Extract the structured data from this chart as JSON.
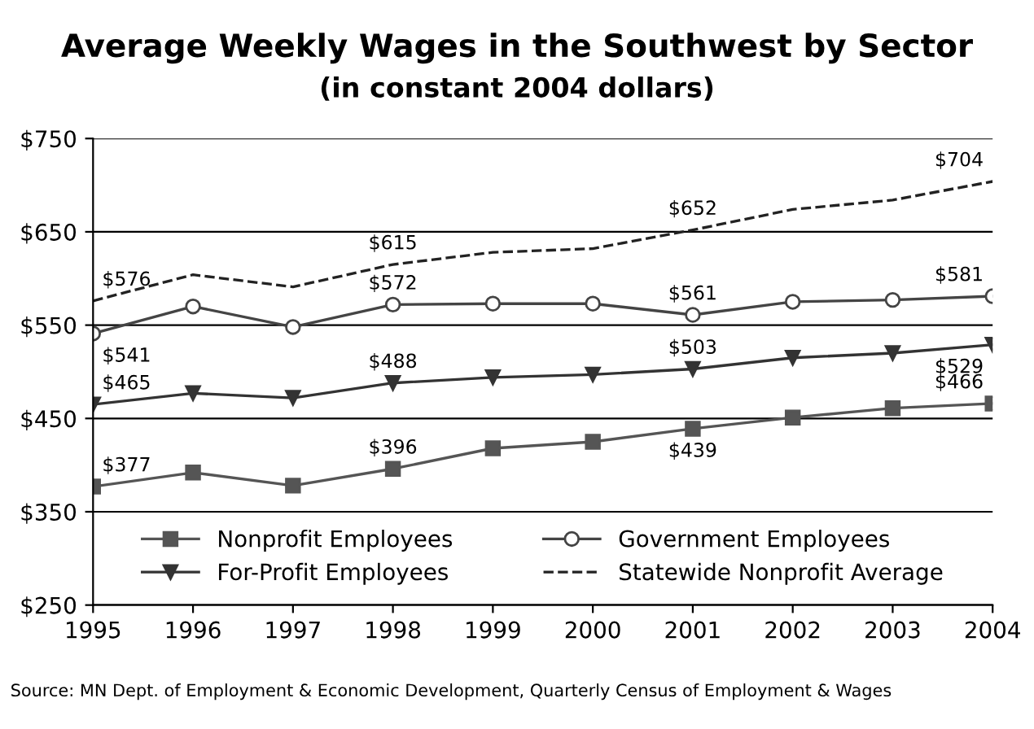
{
  "chart_data": {
    "type": "line",
    "title": "Average Weekly Wages in the Southwest by Sector",
    "subtitle": "(in constant 2004 dollars)",
    "x": [
      1995,
      1996,
      1997,
      1998,
      1999,
      2000,
      2001,
      2002,
      2003,
      2004
    ],
    "xlim": [
      1995,
      2004
    ],
    "xticks": [
      1995,
      1996,
      1997,
      1998,
      1999,
      2000,
      2001,
      2002,
      2003,
      2004
    ],
    "ylim": [
      250,
      750
    ],
    "yticks": [
      {
        "value": 250,
        "label": "$250"
      },
      {
        "value": 350,
        "label": "$350"
      },
      {
        "value": 450,
        "label": "$450"
      },
      {
        "value": 550,
        "label": "$550"
      },
      {
        "value": 650,
        "label": "$650"
      },
      {
        "value": 750,
        "label": "$750"
      }
    ],
    "grid": "y",
    "legend": "bottom",
    "series": [
      {
        "name": "Nonprofit Employees",
        "color": "#555555",
        "marker": "square",
        "line_style": "solid",
        "values": [
          377,
          392,
          378,
          396,
          418,
          425,
          439,
          451,
          461,
          466
        ],
        "value_labels": [
          "$377",
          null,
          null,
          "$396",
          null,
          null,
          "$439",
          null,
          null,
          "$466"
        ]
      },
      {
        "name": "For-Profit Employees",
        "color": "#333333",
        "marker": "triangle",
        "line_style": "solid",
        "values": [
          465,
          477,
          472,
          488,
          494,
          497,
          503,
          515,
          520,
          529
        ],
        "value_labels": [
          "$465",
          null,
          null,
          "$488",
          null,
          null,
          "$503",
          null,
          null,
          "$529"
        ]
      },
      {
        "name": "Government Employees",
        "color": "#444444",
        "marker": "circle",
        "line_style": "solid",
        "values": [
          541,
          570,
          548,
          572,
          573,
          573,
          561,
          575,
          577,
          581
        ],
        "value_labels": [
          "$541",
          null,
          null,
          "$572",
          null,
          null,
          "$561",
          null,
          null,
          "$581"
        ]
      },
      {
        "name": "Statewide Nonprofit Average",
        "color": "#222222",
        "marker": "none",
        "line_style": "dashed",
        "values": [
          576,
          604,
          591,
          615,
          628,
          632,
          652,
          674,
          684,
          704
        ],
        "value_labels": [
          "$576",
          null,
          null,
          "$615",
          null,
          null,
          "$652",
          null,
          null,
          "$704"
        ]
      }
    ],
    "annotations": [
      "Source: MN Dept. of Employment & Economic Development, Quarterly Census of Employment & Wages"
    ]
  }
}
